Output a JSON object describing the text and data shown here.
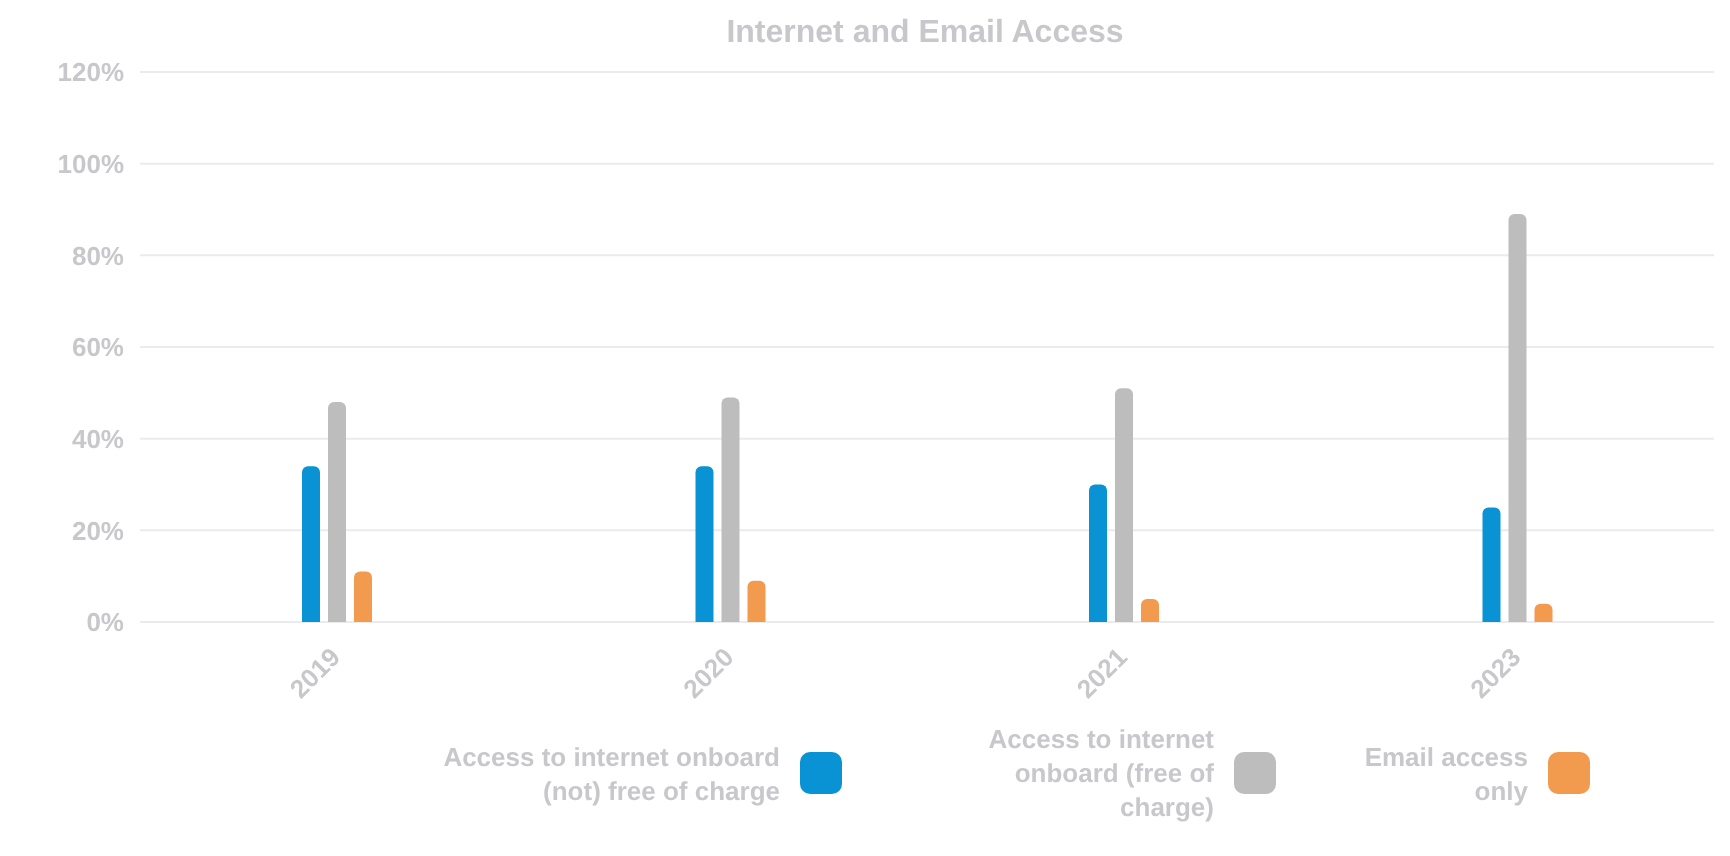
{
  "chart_data": {
    "type": "bar",
    "title": "Internet and Email Access",
    "categories": [
      "2019",
      "2020",
      "2021",
      "2023"
    ],
    "series": [
      {
        "name": "Access to internet onboard (not) free of charge",
        "color": "#0a93d4",
        "values": [
          34,
          34,
          30,
          25
        ]
      },
      {
        "name": "Access to internet onboard (free of charge)",
        "color": "#bdbdbd",
        "values": [
          48,
          49,
          51,
          89
        ]
      },
      {
        "name": "Email access only",
        "color": "#f29a4e",
        "values": [
          11,
          9,
          5,
          4
        ]
      }
    ],
    "ylim": [
      0,
      120
    ],
    "yticks": [
      {
        "value": 0,
        "label": "0%"
      },
      {
        "value": 20,
        "label": "20%"
      },
      {
        "value": 40,
        "label": "40%"
      },
      {
        "value": 60,
        "label": "60%"
      },
      {
        "value": 80,
        "label": "80%"
      },
      {
        "value": 100,
        "label": "100%"
      },
      {
        "value": 120,
        "label": "120%"
      }
    ],
    "grid": "y",
    "legend": "bottom"
  }
}
